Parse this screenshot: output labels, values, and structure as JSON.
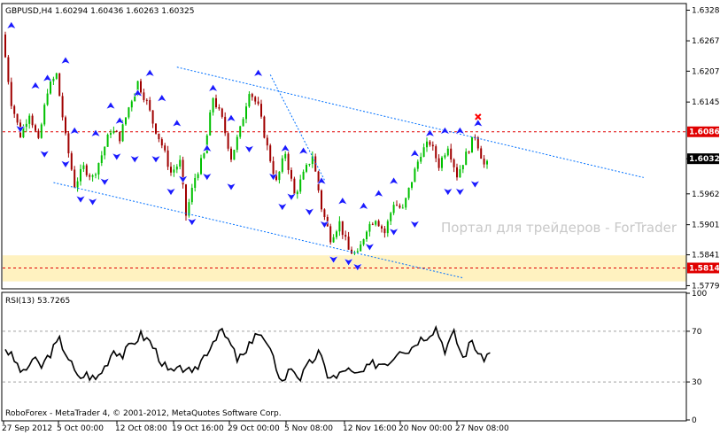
{
  "chart_data": [
    {
      "type": "candlestick",
      "title": "GBPUSD,H4  1.60294 1.60436 1.60263 1.60325",
      "ylim": [
        1.5775,
        1.634
      ],
      "yticks": [
        "1.63285",
        "1.62675",
        "1.62070",
        "1.61455",
        "1.60325",
        "1.59625",
        "1.59010",
        "1.58410",
        "1.57795"
      ],
      "current_price": "1.60325",
      "resistance": "1.60862",
      "support": "1.58148",
      "support_zone": [
        1.5788,
        1.584
      ],
      "watermark": "Портал для трейдеров - ForTrader",
      "price_path": [
        [
          0,
          1.628
        ],
        [
          3,
          1.6145
        ],
        [
          6,
          1.608
        ],
        [
          9,
          1.6125
        ],
        [
          12,
          1.6065
        ],
        [
          15,
          1.617
        ],
        [
          18,
          1.62
        ],
        [
          21,
          1.6075
        ],
        [
          24,
          1.598
        ],
        [
          27,
          1.6015
        ],
        [
          30,
          1.5995
        ],
        [
          33,
          1.604
        ],
        [
          36,
          1.609
        ],
        [
          39,
          1.6075
        ],
        [
          42,
          1.6135
        ],
        [
          45,
          1.6185
        ],
        [
          48,
          1.6145
        ],
        [
          50,
          1.6105
        ],
        [
          53,
          1.606
        ],
        [
          56,
          1.6005
        ],
        [
          59,
          1.6025
        ],
        [
          61,
          1.592
        ],
        [
          64,
          1.5995
        ],
        [
          67,
          1.604
        ],
        [
          70,
          1.6155
        ],
        [
          73,
          1.611
        ],
        [
          76,
          1.6035
        ],
        [
          79,
          1.609
        ],
        [
          82,
          1.617
        ],
        [
          85,
          1.6135
        ],
        [
          88,
          1.6055
        ],
        [
          91,
          1.5985
        ],
        [
          94,
          1.6045
        ],
        [
          97,
          1.596
        ],
        [
          100,
          1.6
        ],
        [
          103,
          1.604
        ],
        [
          106,
          1.5935
        ],
        [
          109,
          1.5875
        ],
        [
          112,
          1.5905
        ],
        [
          115,
          1.585
        ],
        [
          118,
          1.584
        ],
        [
          121,
          1.5895
        ],
        [
          124,
          1.5915
        ],
        [
          127,
          1.5885
        ],
        [
          130,
          1.5945
        ],
        [
          133,
          1.593
        ],
        [
          136,
          1.599
        ],
        [
          139,
          1.6045
        ],
        [
          142,
          1.6065
        ],
        [
          145,
          1.602
        ],
        [
          148,
          1.606
        ],
        [
          151,
          1.6
        ],
        [
          154,
          1.604
        ],
        [
          157,
          1.608
        ],
        [
          160,
          1.602
        ]
      ],
      "channel_upper": [
        [
          57,
          1.6215
        ],
        [
          212,
          1.5995
        ]
      ],
      "channel_lower": [
        [
          16,
          1.5985
        ],
        [
          152,
          1.5795
        ]
      ],
      "up_fractals": [
        [
          2,
          1.6295
        ],
        [
          10,
          1.6175
        ],
        [
          14,
          1.619
        ],
        [
          20,
          1.6225
        ],
        [
          23,
          1.6085
        ],
        [
          30,
          1.608
        ],
        [
          35,
          1.6135
        ],
        [
          38,
          1.6105
        ],
        [
          44,
          1.616
        ],
        [
          48,
          1.62
        ],
        [
          52,
          1.615
        ],
        [
          57,
          1.61
        ],
        [
          67,
          1.605
        ],
        [
          69,
          1.617
        ],
        [
          75,
          1.611
        ],
        [
          84,
          1.62
        ],
        [
          93,
          1.605
        ],
        [
          99,
          1.6045
        ],
        [
          105,
          1.5985
        ],
        [
          112,
          1.5945
        ],
        [
          119,
          1.5935
        ],
        [
          124,
          1.596
        ],
        [
          129,
          1.5985
        ],
        [
          136,
          1.604
        ],
        [
          141,
          1.608
        ],
        [
          146,
          1.6085
        ],
        [
          151,
          1.6085
        ],
        [
          157,
          1.61
        ]
      ],
      "down_fractals": [
        [
          5,
          1.6095
        ],
        [
          13,
          1.6045
        ],
        [
          20,
          1.6025
        ],
        [
          25,
          1.5955
        ],
        [
          29,
          1.595
        ],
        [
          33,
          1.599
        ],
        [
          37,
          1.604
        ],
        [
          43,
          1.6035
        ],
        [
          50,
          1.6035
        ],
        [
          55,
          1.597
        ],
        [
          59,
          1.5995
        ],
        [
          62,
          1.591
        ],
        [
          67,
          1.6
        ],
        [
          75,
          1.598
        ],
        [
          81,
          1.6055
        ],
        [
          89,
          1.6
        ],
        [
          92,
          1.594
        ],
        [
          95,
          1.596
        ],
        [
          101,
          1.593
        ],
        [
          106,
          1.5905
        ],
        [
          109,
          1.5835
        ],
        [
          114,
          1.583
        ],
        [
          117,
          1.582
        ],
        [
          121,
          1.586
        ],
        [
          129,
          1.589
        ],
        [
          136,
          1.5905
        ],
        [
          147,
          1.597
        ],
        [
          151,
          1.597
        ],
        [
          156,
          1.5985
        ]
      ],
      "cross_marker": [
        157,
        1.6116
      ]
    },
    {
      "type": "line",
      "title": "RSI(13) 53.7265",
      "ylim": [
        0,
        100
      ],
      "yticks": [
        "100",
        "70",
        "30",
        "0"
      ],
      "levels": [
        30,
        70
      ],
      "series": [
        {
          "values": [
            [
              0,
              57
            ],
            [
              3,
              47
            ],
            [
              6,
              36
            ],
            [
              9,
              48
            ],
            [
              12,
              42
            ],
            [
              15,
              53
            ],
            [
              18,
              63
            ],
            [
              21,
              49
            ],
            [
              24,
              33
            ],
            [
              27,
              36
            ],
            [
              30,
              32
            ],
            [
              33,
              42
            ],
            [
              36,
              56
            ],
            [
              39,
              51
            ],
            [
              42,
              60
            ],
            [
              45,
              67
            ],
            [
              48,
              62
            ],
            [
              51,
              50
            ],
            [
              54,
              38
            ],
            [
              57,
              38
            ],
            [
              60,
              42
            ],
            [
              62,
              34
            ],
            [
              65,
              47
            ],
            [
              68,
              58
            ],
            [
              71,
              71
            ],
            [
              74,
              63
            ],
            [
              77,
              48
            ],
            [
              80,
              52
            ],
            [
              83,
              70
            ],
            [
              86,
              63
            ],
            [
              89,
              48
            ],
            [
              92,
              30
            ],
            [
              95,
              42
            ],
            [
              98,
              33
            ],
            [
              101,
              44
            ],
            [
              104,
              53
            ],
            [
              107,
              36
            ],
            [
              110,
              33
            ],
            [
              113,
              41
            ],
            [
              116,
              35
            ],
            [
              119,
              38
            ],
            [
              122,
              44
            ],
            [
              125,
              45
            ],
            [
              128,
              47
            ],
            [
              131,
              57
            ],
            [
              134,
              55
            ],
            [
              137,
              63
            ],
            [
              140,
              67
            ],
            [
              143,
              73
            ],
            [
              146,
              56
            ],
            [
              149,
              68
            ],
            [
              152,
              49
            ],
            [
              155,
              63
            ],
            [
              158,
              48
            ],
            [
              161,
              53
            ]
          ]
        }
      ]
    }
  ],
  "footer": "RoboForex - MetaTrader 4, © 2001-2012, MetaQuotes Software Corp.",
  "xticks": [
    "27 Sep 2012",
    "5 Oct 00:00",
    "12 Oct 08:00",
    "19 Oct 16:00",
    "29 Oct 00:00",
    "5 Nov 08:00",
    "12 Nov 16:00",
    "20 Nov 00:00",
    "27 Nov 08:00"
  ],
  "colors": {
    "bull": "#00c000",
    "bear": "#a00000",
    "channel": "#0070ff",
    "fractal": "#1a1aff",
    "level": "#e00000",
    "zone": "#fff2c0",
    "cross": "#ff0000"
  }
}
